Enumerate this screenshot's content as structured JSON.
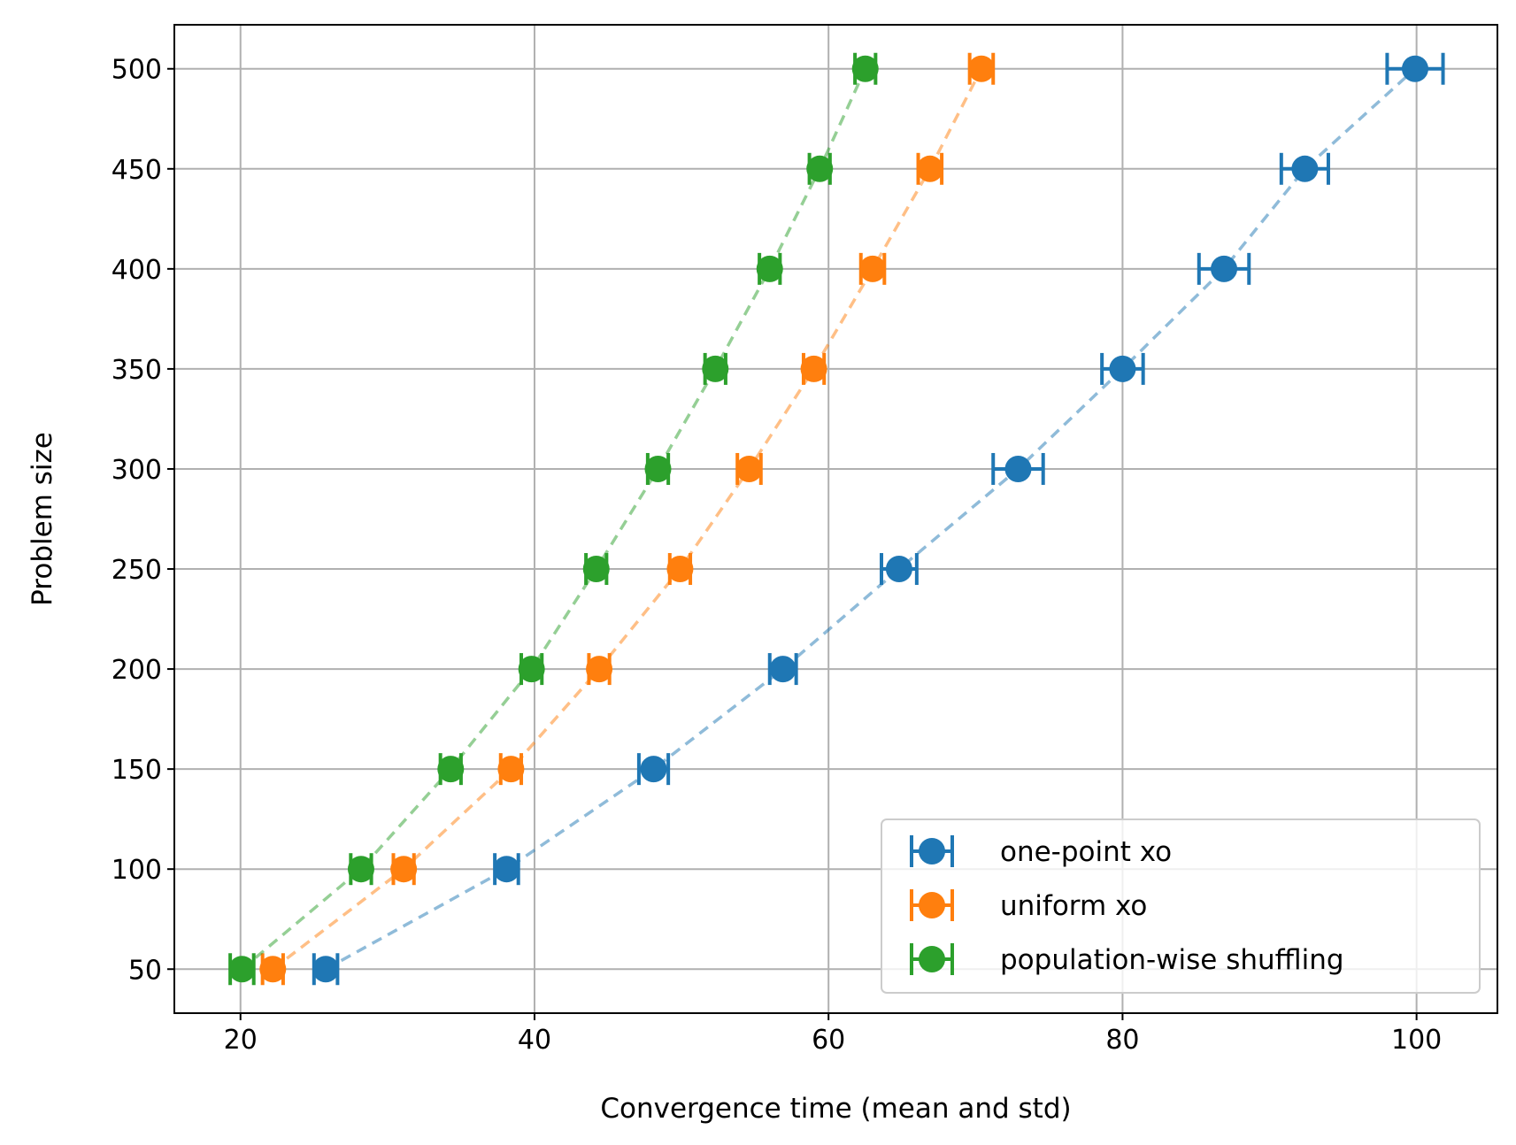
{
  "chart_data": {
    "type": "scatter",
    "xlabel": "Convergence time (mean and std)",
    "ylabel": "Problem size",
    "xlim": [
      15.5,
      105.5
    ],
    "ylim": [
      28,
      522
    ],
    "xticks": [
      20,
      40,
      60,
      80,
      100
    ],
    "yticks": [
      50,
      100,
      150,
      200,
      250,
      300,
      350,
      400,
      450,
      500
    ],
    "grid": true,
    "legend_position": "lower-right",
    "error_bars": "horizontal (std of convergence time)",
    "series": [
      {
        "name": "one-point xo",
        "color": "#1f77b4",
        "y": [
          50,
          100,
          150,
          200,
          250,
          300,
          350,
          400,
          450,
          500
        ],
        "x": [
          25.8,
          38.1,
          48.1,
          56.9,
          64.8,
          72.9,
          80.0,
          86.9,
          92.4,
          99.9
        ],
        "xerr": [
          0.8,
          0.8,
          1.0,
          0.9,
          1.2,
          1.7,
          1.4,
          1.7,
          1.6,
          1.9
        ]
      },
      {
        "name": "uniform xo",
        "color": "#ff7f0e",
        "y": [
          50,
          100,
          150,
          200,
          250,
          300,
          350,
          400,
          450,
          500
        ],
        "x": [
          22.2,
          31.1,
          38.4,
          44.4,
          49.9,
          54.6,
          59.0,
          63.0,
          66.9,
          70.4
        ],
        "xerr": [
          0.7,
          0.7,
          0.7,
          0.7,
          0.7,
          0.8,
          0.7,
          0.8,
          0.8,
          0.8
        ]
      },
      {
        "name": "population-wise shuffling",
        "color": "#2ca02c",
        "y": [
          50,
          100,
          150,
          200,
          250,
          300,
          350,
          400,
          450,
          500
        ],
        "x": [
          20.1,
          28.2,
          34.3,
          39.8,
          44.2,
          48.4,
          52.3,
          56.0,
          59.4,
          62.5
        ],
        "xerr": [
          0.8,
          0.7,
          0.7,
          0.7,
          0.7,
          0.7,
          0.7,
          0.7,
          0.7,
          0.7
        ]
      }
    ]
  }
}
